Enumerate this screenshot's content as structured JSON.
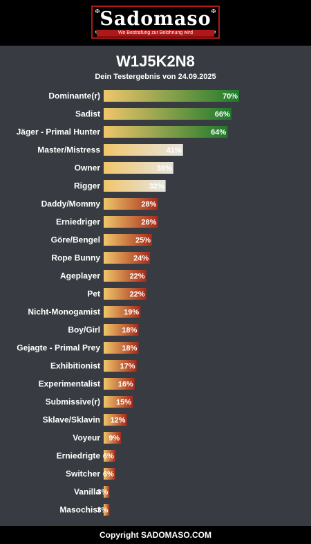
{
  "header": {
    "logo_text": "Sadomaso",
    "tagline": "Wo Bestrafung zur Belohnung wird"
  },
  "result": {
    "code": "W1J5K2N8",
    "subtitle": "Dein Testergebnis von 24.09.2025"
  },
  "footer": {
    "copyright": "Copyright SADOMASO.COM"
  },
  "colors": {
    "background": "#383c42",
    "header_black": "#000000",
    "logo_red": "#b01818",
    "bar_start": "#f0c66a",
    "bar_green": "#1e7a2c",
    "bar_light": "#e6e4e0",
    "bar_red": "#a52a1a"
  },
  "chart_data": {
    "type": "bar",
    "orientation": "horizontal",
    "categories": [
      "Dominante(r)",
      "Sadist",
      "Jäger - Primal Hunter",
      "Master/Mistress",
      "Owner",
      "Rigger",
      "Daddy/Mommy",
      "Erniedriger",
      "Göre/Bengel",
      "Rope Bunny",
      "Ageplayer",
      "Pet",
      "Nicht-Monogamist",
      "Boy/Girl",
      "Gejagte - Primal Prey",
      "Exhibitionist",
      "Experimentalist",
      "Submissive(r)",
      "Sklave/Sklavin",
      "Voyeur",
      "Erniedrigte",
      "Switcher",
      "Vanilla",
      "Masochist"
    ],
    "values": [
      70,
      66,
      64,
      41,
      36,
      32,
      28,
      28,
      25,
      24,
      22,
      22,
      19,
      18,
      18,
      17,
      16,
      15,
      12,
      9,
      6,
      6,
      3,
      3
    ],
    "value_labels": [
      "70%",
      "66%",
      "64%",
      "41%",
      "36%",
      "32%",
      "28%",
      "28%",
      "25%",
      "24%",
      "22%",
      "22%",
      "19%",
      "18%",
      "18%",
      "17%",
      "16%",
      "15%",
      "12%",
      "9%",
      "6%",
      "6%",
      "3%",
      "3%"
    ],
    "bar_styles": [
      "green",
      "green",
      "green",
      "light",
      "light",
      "light",
      "red",
      "red",
      "red",
      "red",
      "red",
      "red",
      "red",
      "red",
      "red",
      "red",
      "red",
      "red",
      "red",
      "red",
      "red",
      "red",
      "red",
      "red"
    ],
    "xlim": [
      0,
      100
    ],
    "grid": false,
    "legend": "none"
  }
}
